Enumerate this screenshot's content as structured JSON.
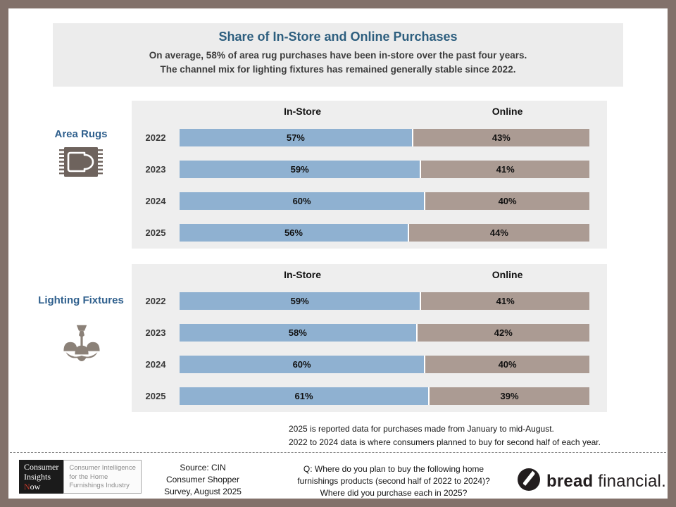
{
  "header": {
    "title": "Share of In-Store and Online Purchases",
    "subtitle1": "On average, 58% of area rug purchases have been in-store over the past four years.",
    "subtitle2": "The channel mix for lighting fixtures has remained generally stable since 2022."
  },
  "colors": {
    "in_store": "#8fb1d1",
    "online": "#ab9b93",
    "title_blue": "#2e5f7f",
    "frame": "#82716a",
    "panel_bg": "#eeeeee",
    "icon_gray": "#6e635d"
  },
  "sections": [
    {
      "label": "Area Rugs",
      "icon": "rug-icon"
    },
    {
      "label": "Lighting Fixtures",
      "icon": "chandelier-icon"
    }
  ],
  "chart_data": [
    {
      "type": "bar",
      "orientation": "horizontal",
      "stacked": true,
      "title": "Area Rugs",
      "categories": [
        "2022",
        "2023",
        "2024",
        "2025"
      ],
      "series": [
        {
          "name": "In-Store",
          "values": [
            57,
            59,
            60,
            56
          ]
        },
        {
          "name": "Online",
          "values": [
            43,
            41,
            40,
            44
          ]
        }
      ],
      "unit": "%",
      "xlim": [
        0,
        100
      ],
      "grid": false,
      "legend_position": "column-headers"
    },
    {
      "type": "bar",
      "orientation": "horizontal",
      "stacked": true,
      "title": "Lighting Fixtures",
      "categories": [
        "2022",
        "2023",
        "2024",
        "2025"
      ],
      "series": [
        {
          "name": "In-Store",
          "values": [
            59,
            58,
            60,
            61
          ]
        },
        {
          "name": "Online",
          "values": [
            41,
            42,
            40,
            39
          ]
        }
      ],
      "unit": "%",
      "xlim": [
        0,
        100
      ],
      "grid": false,
      "legend_position": "column-headers"
    }
  ],
  "footnotes": {
    "line1": "2025 is reported data for purchases made from January to mid-August.",
    "line2": "2022 to 2024 data is where consumers planned to buy for second half of each year."
  },
  "footer": {
    "cin_logo": {
      "line1": "Consumer",
      "line2": "Insights",
      "line3_initial": "N",
      "line3_rest": "ow",
      "tagline1": "Consumer Intelligence",
      "tagline2": "for the Home",
      "tagline3": "Furnishings Industry"
    },
    "source": {
      "line1": "Source: CIN",
      "line2": "Consumer Shopper",
      "line3": "Survey, August 2025"
    },
    "question": {
      "line1": "Q: Where do you plan to buy the following home",
      "line2": "furnishings products (second half of 2022 to 2024)?",
      "line3": "Where did you purchase each in 2025?"
    },
    "brand": {
      "bold": "bread",
      "light": "financial."
    }
  }
}
